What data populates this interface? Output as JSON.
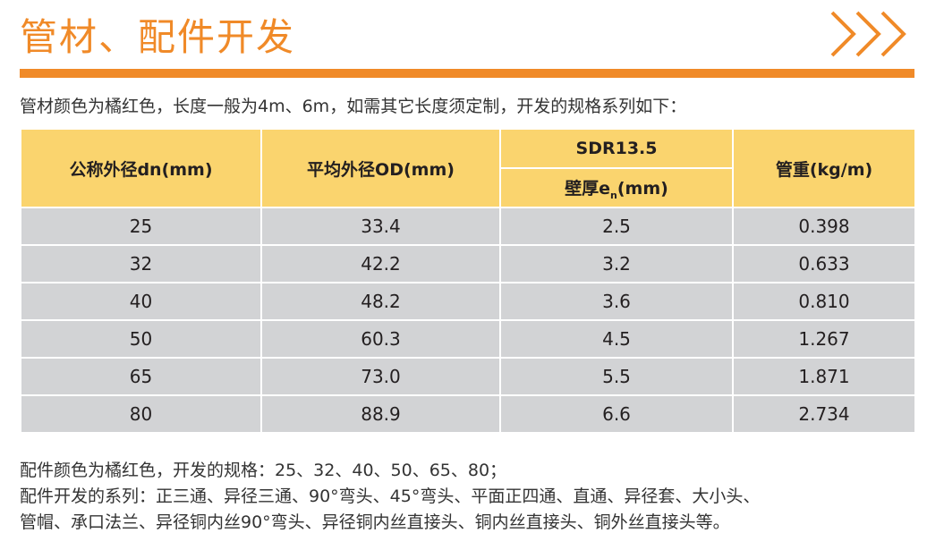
{
  "title": "管材、配件开发",
  "icon": "triple-chevron-right-icon",
  "accent": "#f08a28",
  "intro": "管材颜色为橘红色，长度一般为4m、6m，如需其它长度须定制，开发的规格系列如下：",
  "table": {
    "headers": {
      "dn": "公称外径dn(mm)",
      "od": "平均外径OD(mm)",
      "sdr": "SDR13.5",
      "wall": "壁厚e",
      "wall_sub": "n",
      "wall_unit": "(mm)",
      "weight": "管重(kg/m)"
    },
    "rows": [
      [
        "25",
        "33.4",
        "2.5",
        "0.398"
      ],
      [
        "32",
        "42.2",
        "3.2",
        "0.633"
      ],
      [
        "40",
        "48.2",
        "3.6",
        "0.810"
      ],
      [
        "50",
        "60.3",
        "4.5",
        "1.267"
      ],
      [
        "65",
        "73.0",
        "5.5",
        "1.871"
      ],
      [
        "80",
        "88.9",
        "6.6",
        "2.734"
      ]
    ]
  },
  "footer": [
    "配件颜色为橘红色，开发的规格：25、32、40、50、65、80；",
    "配件开发的系列：正三通、异径三通、90°弯头、45°弯头、平面正四通、直通、异径套、大小头、",
    "管帽、承口法兰、异径铜内丝90°弯头、异径铜内丝直接头、铜内丝直接头、铜外丝直接头等。"
  ]
}
